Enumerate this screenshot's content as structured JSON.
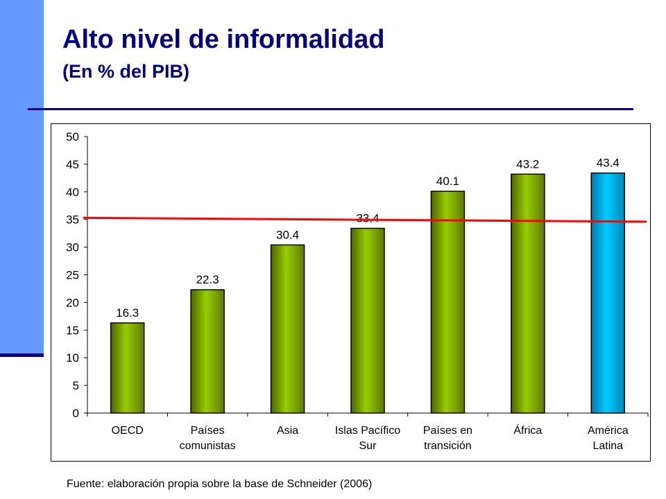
{
  "header": {
    "title": "Alto nivel de informalidad",
    "subtitle": "(En % del PIB)"
  },
  "footer": {
    "source": "Fuente: elaboración propia sobre la base de Schneider (2006)"
  },
  "colors": {
    "accent_bar": "#6699ff",
    "title": "#000080",
    "bar_green": "#99cc00",
    "bar_highlight": "#00ccff",
    "reference_line": "#ff0000"
  },
  "chart_data": {
    "type": "bar",
    "categories": [
      [
        "OECD"
      ],
      [
        "Países",
        "comunistas"
      ],
      [
        "Asia"
      ],
      [
        "Islas Pacífico",
        "Sur"
      ],
      [
        "Países en",
        "transición"
      ],
      [
        "África"
      ],
      [
        "América",
        "Latina"
      ]
    ],
    "values": [
      16.3,
      22.3,
      30.4,
      33.4,
      40.1,
      43.2,
      43.4
    ],
    "data_labels": [
      "16.3",
      "22.3",
      "30.4",
      "33.4",
      "40.1",
      "43.2",
      "43.4"
    ],
    "highlight_index": 6,
    "ylim": [
      0,
      50
    ],
    "yticks": [
      0,
      5,
      10,
      15,
      20,
      25,
      30,
      35,
      40,
      45,
      50
    ],
    "reference_line": {
      "from": 35.3,
      "to": 34.6
    },
    "grid": false,
    "legend": "none"
  }
}
